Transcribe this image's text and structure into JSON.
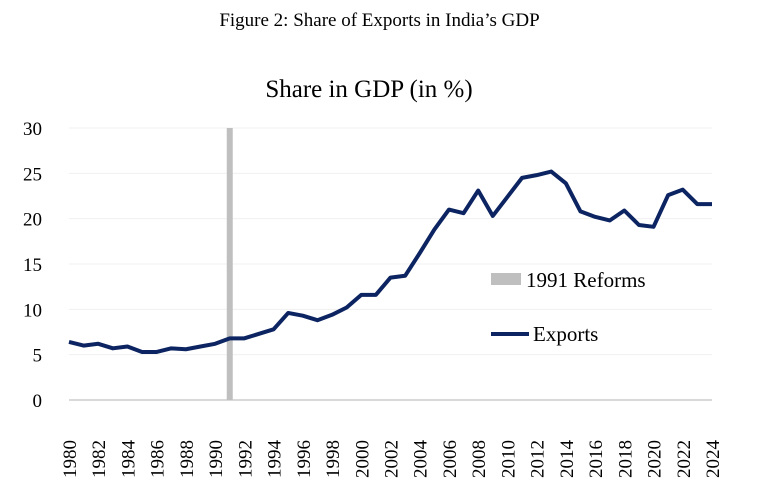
{
  "figure_title": "Figure 2: Share of Exports in India’s GDP",
  "chart_data": {
    "type": "line",
    "title": "Share in GDP (in %)",
    "xlabel": "",
    "ylabel": "",
    "ylim": [
      0,
      30
    ],
    "yticks": [
      "0",
      "5",
      "10",
      "15",
      "20",
      "25",
      "30"
    ],
    "x": [
      1980,
      1981,
      1982,
      1983,
      1984,
      1985,
      1986,
      1987,
      1988,
      1989,
      1990,
      1991,
      1992,
      1993,
      1994,
      1995,
      1996,
      1997,
      1998,
      1999,
      2000,
      2001,
      2002,
      2003,
      2004,
      2005,
      2006,
      2007,
      2008,
      2009,
      2010,
      2011,
      2012,
      2013,
      2014,
      2015,
      2016,
      2017,
      2018,
      2019,
      2020,
      2021,
      2022,
      2023,
      2024
    ],
    "xticks": [
      "1980",
      "1982",
      "1984",
      "1986",
      "1988",
      "1990",
      "1992",
      "1994",
      "1996",
      "1998",
      "2000",
      "2002",
      "2004",
      "2006",
      "2008",
      "2010",
      "2012",
      "2014",
      "2016",
      "2018",
      "2020",
      "2022",
      "2024"
    ],
    "series": [
      {
        "name": "Exports",
        "color": "#0c2461",
        "values": [
          6.4,
          6.0,
          6.2,
          5.7,
          5.9,
          5.3,
          5.3,
          5.7,
          5.6,
          5.9,
          6.2,
          6.8,
          6.8,
          7.3,
          7.8,
          9.6,
          9.3,
          8.8,
          9.4,
          10.2,
          11.6,
          11.6,
          13.5,
          13.7,
          16.2,
          18.8,
          21.0,
          20.6,
          23.1,
          20.3,
          22.4,
          24.5,
          24.8,
          25.2,
          23.9,
          20.8,
          20.2,
          19.8,
          20.9,
          19.3,
          19.1,
          22.6,
          23.2,
          21.6,
          21.6
        ]
      }
    ],
    "annotations": [
      {
        "name": "1991 Reforms",
        "x": 1991,
        "color": "#bfbfbf"
      }
    ],
    "legend": {
      "placement": "center-right",
      "entries": [
        "1991 Reforms",
        "Exports"
      ]
    },
    "grid": true
  }
}
